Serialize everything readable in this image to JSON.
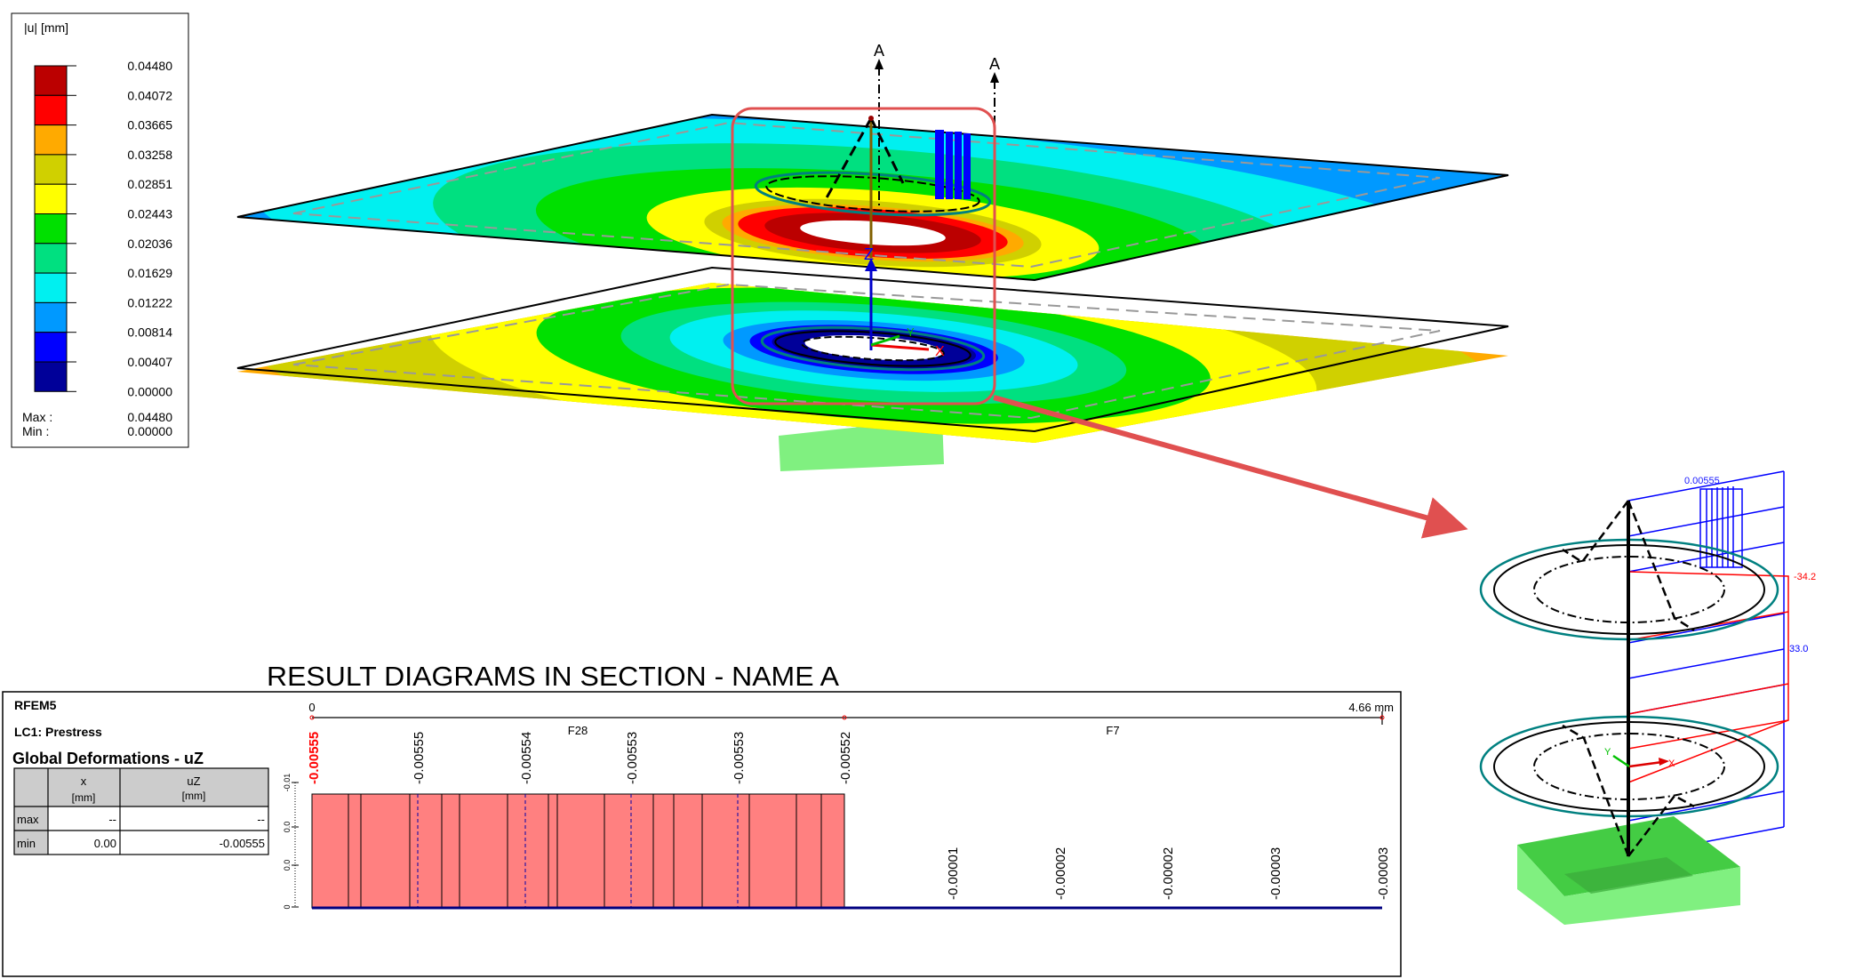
{
  "legend": {
    "title": "|u| [mm]",
    "entries": [
      {
        "value": "0.04480",
        "color": "#bb0000"
      },
      {
        "value": "0.04072",
        "color": "#ff0000"
      },
      {
        "value": "0.03665",
        "color": "#ffaa00"
      },
      {
        "value": "0.03258",
        "color": "#d0d000"
      },
      {
        "value": "0.02851",
        "color": "#ffff00"
      },
      {
        "value": "0.02443",
        "color": "#00e000"
      },
      {
        "value": "0.02036",
        "color": "#00e080"
      },
      {
        "value": "0.01629",
        "color": "#00f0f0"
      },
      {
        "value": "0.01222",
        "color": "#0099ff"
      },
      {
        "value": "0.00814",
        "color": "#0000ff"
      },
      {
        "value": "0.00407",
        "color": "#000099"
      }
    ],
    "min_value": "0.00000",
    "max_label": "Max :",
    "max": "0.04480",
    "min_label": "Min :",
    "min": "0.00000"
  },
  "scene": {
    "section_markers": [
      "A",
      "A"
    ],
    "axis_labels": {
      "z": "Z",
      "x": "X",
      "y": "Y"
    },
    "highlight_color": "#e05050"
  },
  "detail": {
    "deformation_label": "0.00555",
    "force_negative": "-34.2",
    "force_positive": "33.0",
    "axis_x": "X",
    "axis_y": "Y"
  },
  "result": {
    "title": "RESULT DIAGRAMS IN SECTION - NAME A",
    "program": "RFEM5",
    "load_case": "LC1: Prestress",
    "quantity": "Global Deformations - uZ",
    "table": {
      "headers": [
        {
          "name": "x",
          "unit": "[mm]"
        },
        {
          "name": "uZ",
          "unit": "[mm]"
        }
      ],
      "rows": [
        {
          "label": "max",
          "x": "--",
          "uz": "--"
        },
        {
          "label": "min",
          "x": "0.00",
          "uz": "-0.00555"
        }
      ]
    },
    "section_start": "0",
    "section_end": "4.66 mm",
    "segments": [
      "F28",
      "F7"
    ],
    "y_ticks": [
      "-0.01",
      "0.0",
      "0.0",
      "0"
    ],
    "extreme_label": "-0.00555",
    "f28_labels": [
      "-0.00555",
      "-0.00554",
      "-0.00553",
      "-0.00553",
      "-0.00552"
    ],
    "f7_labels": [
      "-0.00001",
      "-0.00002",
      "-0.00002",
      "-0.00003",
      "-0.00003"
    ],
    "fill_color": "#ff8080",
    "baseline_color": "#000080"
  }
}
